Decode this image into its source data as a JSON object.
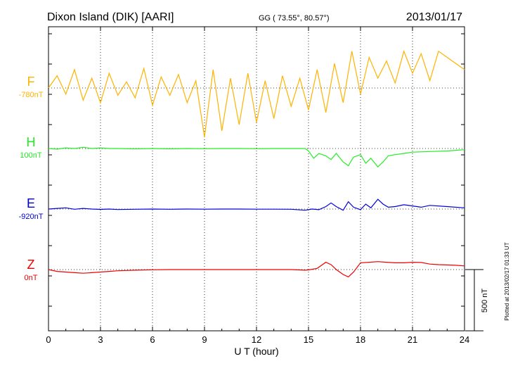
{
  "chart_data": {
    "type": "line",
    "title": "Dixon Island (DIK)  [AARI]",
    "coords": "GG ( 73.55°,  80.57°)",
    "date": "2013/01/17",
    "xlabel": "U T (hour)",
    "xlim": [
      0,
      24
    ],
    "xticks": [
      "0",
      "3",
      "6",
      "9",
      "12",
      "15",
      "18",
      "21",
      "24"
    ],
    "scale_label": "500 nT",
    "plotted_note": "Plotted at 2013/02/17 01:33 UT",
    "series": [
      {
        "name": "F",
        "offset": "-780nT",
        "color": "#ffb300",
        "x": [
          0,
          0.5,
          1,
          1.5,
          2,
          2.5,
          3,
          3.5,
          4,
          4.5,
          5,
          5.5,
          6,
          6.5,
          7,
          7.5,
          8,
          8.5,
          9,
          9.5,
          10,
          10.5,
          11,
          11.5,
          12,
          12.5,
          13,
          13.5,
          14,
          14.5,
          15,
          15.5,
          16,
          16.5,
          17,
          17.5,
          18,
          18.5,
          19,
          19.5,
          20,
          20.5,
          21,
          21.5,
          22,
          22.5,
          23,
          23.5,
          24
        ],
        "values": [
          0,
          100,
          -50,
          150,
          -100,
          80,
          -120,
          120,
          -60,
          50,
          -80,
          160,
          -140,
          90,
          -60,
          110,
          -120,
          60,
          -400,
          150,
          -350,
          80,
          -300,
          120,
          -280,
          60,
          -250,
          100,
          -150,
          80,
          -180,
          150,
          -200,
          200,
          -120,
          300,
          -50,
          250,
          80,
          220,
          40,
          300,
          120,
          280,
          60,
          300,
          250,
          200,
          150
        ]
      },
      {
        "name": "H",
        "offset": "100nT",
        "color": "#22ee22",
        "x": [
          0,
          0.5,
          1,
          1.5,
          2,
          2.5,
          3,
          3.5,
          4,
          5,
          6,
          7,
          8,
          9,
          10,
          11,
          12,
          13,
          14,
          14.8,
          15,
          15.3,
          15.6,
          16,
          16.3,
          16.6,
          17,
          17.3,
          17.6,
          18,
          18.3,
          18.6,
          19,
          19.3,
          19.6,
          20,
          20.5,
          21,
          22,
          23,
          24
        ],
        "values": [
          0,
          -5,
          5,
          0,
          10,
          0,
          5,
          0,
          0,
          -3,
          0,
          -3,
          0,
          -2,
          0,
          0,
          -2,
          0,
          0,
          0,
          -20,
          -80,
          -40,
          -60,
          -90,
          -40,
          -110,
          -140,
          -70,
          -50,
          -120,
          -80,
          -150,
          -110,
          -60,
          -50,
          -40,
          -30,
          -25,
          -20,
          -10
        ]
      },
      {
        "name": "E",
        "offset": "-920nT",
        "color": "#0000dd",
        "x": [
          0,
          0.5,
          1,
          1.5,
          2,
          2.5,
          3,
          3.5,
          4,
          5,
          6,
          7,
          8,
          9,
          10,
          11,
          12,
          13,
          14,
          14.8,
          15.2,
          15.6,
          16,
          16.3,
          16.6,
          17,
          17.3,
          17.6,
          18,
          18.3,
          18.6,
          19,
          19.3,
          19.6,
          20,
          20.5,
          21,
          21.5,
          22,
          23,
          24
        ],
        "values": [
          0,
          5,
          10,
          -2,
          5,
          0,
          -3,
          0,
          -4,
          -2,
          0,
          -2,
          0,
          -1,
          0,
          0,
          -1,
          -1,
          -2,
          -10,
          0,
          -5,
          20,
          50,
          20,
          -10,
          60,
          15,
          -5,
          40,
          10,
          80,
          40,
          15,
          20,
          35,
          25,
          15,
          30,
          20,
          10
        ]
      },
      {
        "name": "Z",
        "offset": "0nT",
        "color": "#ee0000",
        "x": [
          0,
          0.5,
          1,
          1.5,
          2,
          2.5,
          3,
          3.5,
          4,
          5,
          6,
          7,
          8,
          9,
          10,
          11,
          12,
          13,
          14,
          14.8,
          15,
          15.5,
          16,
          16.3,
          16.6,
          17,
          17.3,
          17.6,
          18,
          18.5,
          19,
          19.5,
          20,
          20.5,
          21,
          21.5,
          22,
          22.5,
          23,
          23.5,
          24
        ],
        "values": [
          0,
          -15,
          -20,
          -25,
          -30,
          -25,
          -20,
          -15,
          -10,
          -5,
          -2,
          0,
          0,
          0,
          0,
          0,
          0,
          0,
          0,
          -5,
          -3,
          10,
          60,
          40,
          0,
          -40,
          -60,
          -20,
          55,
          60,
          65,
          60,
          55,
          55,
          60,
          58,
          45,
          40,
          38,
          35,
          30
        ]
      }
    ]
  }
}
